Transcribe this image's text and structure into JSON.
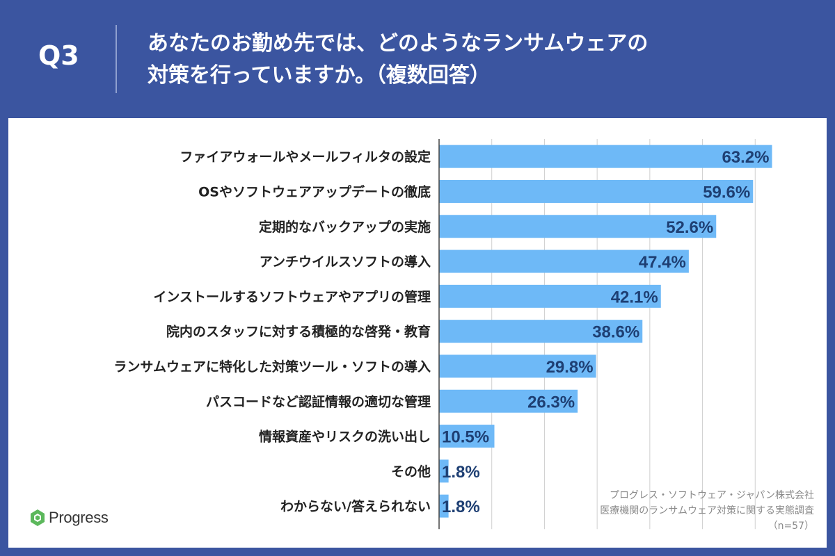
{
  "header": {
    "q_label": "Q3",
    "title_line1": "あなたのお勤め先では、どのようなランサムウェアの",
    "title_line2": "対策を行っていますか。（複数回答）"
  },
  "colors": {
    "background": "#3b55a0",
    "bar": "#6eb9f7",
    "label_text": "#222222",
    "value_text": "#1e3f73",
    "grid": "#cfcfcf"
  },
  "chart_data": {
    "type": "bar",
    "orientation": "horizontal",
    "categories": [
      "ファイアウォールやメールフィルタの設定",
      "OSやソフトウェアアップデートの徹底",
      "定期的なバックアップの実施",
      "アンチウイルスソフトの導入",
      "インストールするソフトウェアやアプリの管理",
      "院内のスタッフに対する積極的な啓発・教育",
      "ランサムウェアに特化した対策ツール・ソフトの導入",
      "パスコードなど認証情報の適切な管理",
      "情報資産やリスクの洗い出し",
      "その他",
      "わからない/答えられない"
    ],
    "values": [
      63.2,
      59.6,
      52.6,
      47.4,
      42.1,
      38.6,
      29.8,
      26.3,
      10.5,
      1.8,
      1.8
    ],
    "value_labels": [
      "63.2%",
      "59.6%",
      "52.6%",
      "47.4%",
      "42.1%",
      "38.6%",
      "29.8%",
      "26.3%",
      "10.5%",
      "1.8%",
      "1.8%"
    ],
    "xlim": [
      0,
      70
    ],
    "grid": true,
    "legend": "none"
  },
  "logo": {
    "text": "Progress"
  },
  "source": {
    "line1": "プログレス・ソフトウェア・ジャパン株式会社",
    "line2": "医療機関のランサムウェア対策に関する実態調査",
    "line3": "（n=57）"
  }
}
